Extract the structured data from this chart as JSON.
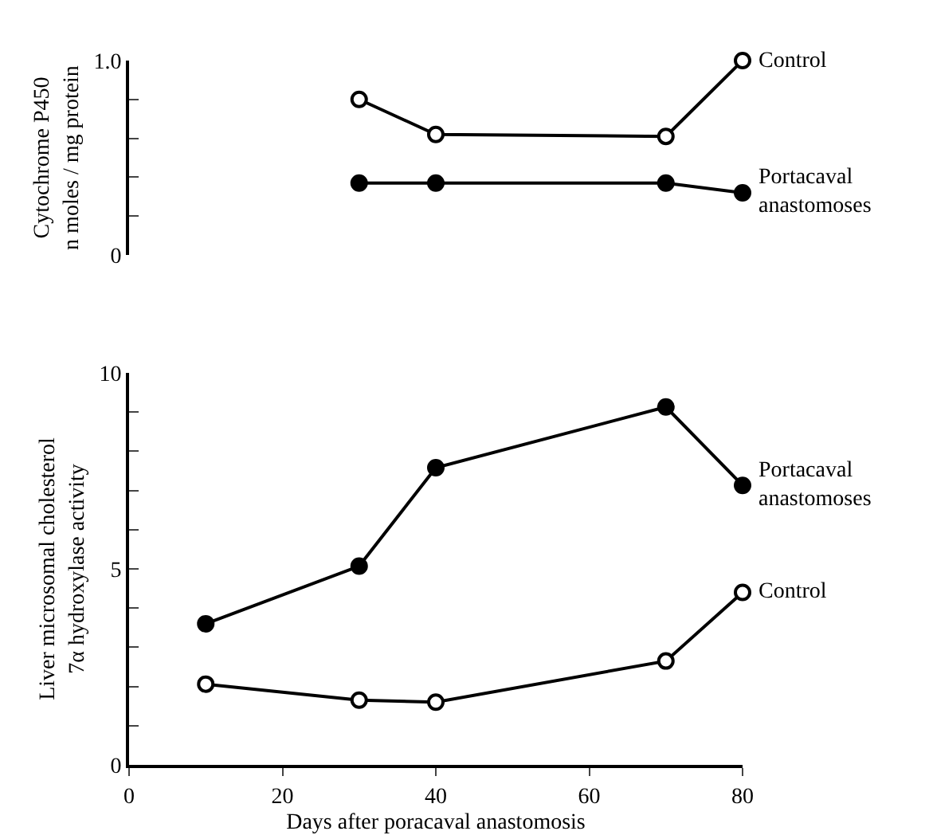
{
  "chart_data": [
    {
      "type": "line",
      "ylabel": "Cytochrome P450\nn moles / mg protein",
      "xlim": [
        0,
        80
      ],
      "xticks": [
        0,
        20,
        40,
        60,
        80
      ],
      "ylim": [
        0,
        1
      ],
      "yticks": [
        {
          "value": 0,
          "label": "0"
        },
        {
          "value": 0.2,
          "label": null
        },
        {
          "value": 0.4,
          "label": null
        },
        {
          "value": 0.6,
          "label": null
        },
        {
          "value": 0.8,
          "label": null
        },
        {
          "value": 1,
          "label": "1.0"
        }
      ],
      "tick_labels": "y",
      "marker": "circle",
      "line_style": "solid",
      "grid": false,
      "legend": false,
      "x": [
        30,
        40,
        70,
        80
      ],
      "series": [
        {
          "name": "Control",
          "color": "#000000",
          "colors": [
            "#ffffff",
            "#ffffff",
            "#ffffff",
            "#ffffff"
          ],
          "values": [
            0.8,
            0.62,
            0.61,
            1.0
          ]
        },
        {
          "name": "Portacaval anastomoses",
          "color": "#000000",
          "colors": [
            "#000000",
            "#000000",
            "#000000",
            "#000000"
          ],
          "values": [
            0.37,
            0.37,
            0.37,
            0.32
          ]
        }
      ]
    },
    {
      "type": "line",
      "xlabel": "Days after poracaval anastomosis",
      "ylabel": "Liver microsomal cholesterol\n7α hydroxylase activity",
      "xlim": [
        0,
        80
      ],
      "xticks": [
        0,
        20,
        40,
        60,
        80
      ],
      "ylim": [
        0,
        10
      ],
      "yticks": [
        0,
        {
          "value": 1,
          "label": null
        },
        {
          "value": 2,
          "label": null
        },
        {
          "value": 3,
          "label": null
        },
        {
          "value": 4,
          "label": null
        },
        5,
        {
          "value": 6,
          "label": null
        },
        {
          "value": 7,
          "label": null
        },
        {
          "value": 8,
          "label": null
        },
        {
          "value": 9,
          "label": null
        },
        10
      ],
      "marker": "circle",
      "line_style": "solid",
      "grid": false,
      "legend": false,
      "x": [
        10,
        30,
        40,
        70,
        80
      ],
      "series": [
        {
          "name": "Portacaval anastomoses",
          "color": "#000000",
          "colors": [
            "#000000",
            "#000000",
            "#000000",
            "#000000",
            "#000000"
          ],
          "values": [
            3.6,
            5.07,
            7.58,
            9.13,
            7.13
          ]
        },
        {
          "name": "Control",
          "color": "#000000",
          "colors": [
            "#ffffff",
            "#ffffff",
            "#ffffff",
            "#ffffff",
            "#ffffff"
          ],
          "values": [
            2.06,
            1.65,
            1.6,
            2.65,
            4.4
          ]
        }
      ]
    }
  ]
}
